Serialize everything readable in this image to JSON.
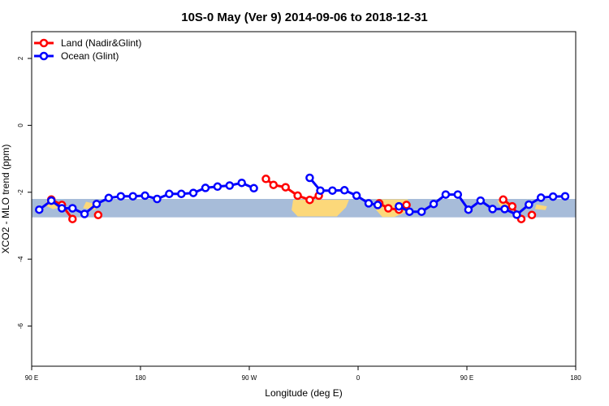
{
  "chart_data": {
    "type": "line",
    "title": "10S-0 May (Ver 9)   2014-09-06 to 2018-12-31",
    "xlabel": "Longitude (deg E)",
    "ylabel": "XCO2 - MLO trend (ppm)",
    "xlim": [
      90,
      450
    ],
    "ylim": [
      -7.2,
      2.8
    ],
    "x_ticks": [
      {
        "value": 90,
        "label": "90 E"
      },
      {
        "value": 162,
        "label": "180"
      },
      {
        "value": 234,
        "label": "90 W"
      },
      {
        "value": 306,
        "label": "0"
      },
      {
        "value": 378,
        "label": "90 E"
      },
      {
        "value": 450,
        "label": "180"
      }
    ],
    "y_ticks": [
      {
        "value": 2,
        "label": "2"
      },
      {
        "value": 0,
        "label": "0"
      },
      {
        "value": -2,
        "label": "-2"
      },
      {
        "value": -4,
        "label": "-4"
      },
      {
        "value": -6,
        "label": "-6"
      }
    ],
    "map_band": {
      "y_top": -2.2,
      "y_bottom": -2.75,
      "ocean_color": "#a7bcd9",
      "land_color": "#fcd87a"
    },
    "legend_position": "top-left",
    "series": [
      {
        "name": "Land (Nadir&Glint)",
        "color": "#ff0000",
        "segments": [
          [
            [
              103,
              -2.22
            ],
            [
              110,
              -2.38
            ],
            [
              117,
              -2.8
            ]
          ],
          [
            [
              134,
              -2.68
            ]
          ],
          [
            [
              245,
              -1.6
            ],
            [
              250,
              -1.78
            ],
            [
              258,
              -1.85
            ],
            [
              266,
              -2.1
            ],
            [
              274,
              -2.23
            ],
            [
              280,
              -2.1
            ]
          ],
          [
            [
              320,
              -2.33
            ],
            [
              326,
              -2.48
            ],
            [
              333,
              -2.52
            ],
            [
              338,
              -2.38
            ]
          ],
          [
            [
              402,
              -2.22
            ],
            [
              408,
              -2.42
            ],
            [
              414,
              -2.8
            ]
          ],
          [
            [
              421,
              -2.68
            ]
          ]
        ]
      },
      {
        "name": "Ocean (Glint)",
        "color": "#0000ff",
        "segments": [
          [
            [
              95,
              -2.52
            ],
            [
              103,
              -2.25
            ],
            [
              110,
              -2.48
            ],
            [
              117,
              -2.48
            ],
            [
              125,
              -2.65
            ],
            [
              133,
              -2.35
            ],
            [
              141,
              -2.17
            ],
            [
              149,
              -2.12
            ],
            [
              157,
              -2.12
            ],
            [
              165,
              -2.1
            ],
            [
              173,
              -2.2
            ],
            [
              181,
              -2.05
            ],
            [
              189,
              -2.05
            ],
            [
              197,
              -2.02
            ],
            [
              205,
              -1.87
            ],
            [
              213,
              -1.83
            ],
            [
              221,
              -1.8
            ],
            [
              229,
              -1.72
            ],
            [
              237,
              -1.88
            ]
          ],
          [
            [
              274,
              -1.57
            ],
            [
              281,
              -1.95
            ],
            [
              289,
              -1.95
            ],
            [
              297,
              -1.94
            ],
            [
              305,
              -2.1
            ],
            [
              313,
              -2.33
            ],
            [
              319,
              -2.38
            ]
          ],
          [
            [
              333,
              -2.42
            ],
            [
              340,
              -2.58
            ],
            [
              348,
              -2.58
            ],
            [
              356,
              -2.35
            ],
            [
              364,
              -2.07
            ],
            [
              372,
              -2.07
            ],
            [
              379,
              -2.52
            ],
            [
              387,
              -2.25
            ],
            [
              395,
              -2.5
            ],
            [
              403,
              -2.5
            ],
            [
              411,
              -2.67
            ],
            [
              419,
              -2.37
            ],
            [
              427,
              -2.16
            ],
            [
              435,
              -2.13
            ],
            [
              443,
              -2.12
            ]
          ]
        ]
      }
    ]
  }
}
